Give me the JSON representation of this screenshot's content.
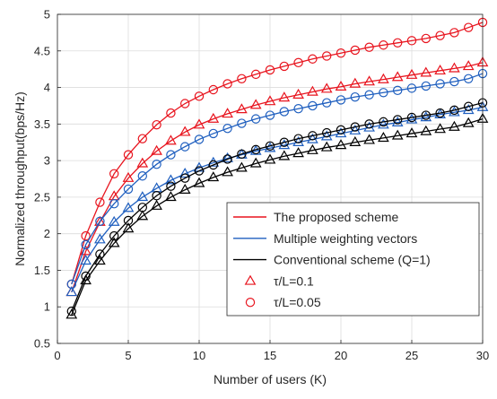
{
  "chart_data": {
    "type": "line",
    "xlabel": "Number of users (K)",
    "ylabel": "Normalized throughput(bps/Hz)",
    "xlim": [
      0,
      30
    ],
    "ylim": [
      0.5,
      5
    ],
    "x_ticks": [
      "0",
      "5",
      "10",
      "15",
      "20",
      "25",
      "30"
    ],
    "y_ticks": [
      "0.5",
      "1",
      "1.5",
      "2",
      "2.5",
      "3",
      "3.5",
      "4",
      "4.5",
      "5"
    ],
    "grid": true,
    "legend_position": "bottom-right",
    "legend": [
      {
        "label": "The proposed scheme",
        "kind": "line",
        "color": "#e8141e"
      },
      {
        "label": "Multiple weighting vectors",
        "kind": "line",
        "color": "#1f5fbf"
      },
      {
        "label": "Conventional scheme (Q=1)",
        "kind": "line",
        "color": "#000000"
      },
      {
        "label": "τ/L=0.1",
        "kind": "marker",
        "marker": "triangle",
        "color": "#e8141e"
      },
      {
        "label": "τ/L=0.05",
        "kind": "marker",
        "marker": "circle",
        "color": "#e8141e"
      }
    ],
    "x": [
      1,
      2,
      3,
      4,
      5,
      6,
      7,
      8,
      9,
      10,
      11,
      12,
      13,
      14,
      15,
      16,
      17,
      18,
      19,
      20,
      21,
      22,
      23,
      24,
      25,
      26,
      27,
      28,
      29,
      30
    ],
    "series": [
      {
        "scheme": "The proposed scheme",
        "tau_over_L": "0.05",
        "color": "#e8141e",
        "marker": "circle",
        "values": [
          1.31,
          1.97,
          2.43,
          2.82,
          3.08,
          3.3,
          3.49,
          3.65,
          3.78,
          3.88,
          3.97,
          4.05,
          4.12,
          4.18,
          4.24,
          4.29,
          4.34,
          4.39,
          4.43,
          4.47,
          4.51,
          4.55,
          4.58,
          4.61,
          4.64,
          4.67,
          4.71,
          4.75,
          4.82,
          4.89
        ]
      },
      {
        "scheme": "The proposed scheme",
        "tau_over_L": "0.1",
        "color": "#e8141e",
        "marker": "triangle",
        "values": [
          1.2,
          1.76,
          2.16,
          2.51,
          2.76,
          2.96,
          3.13,
          3.27,
          3.39,
          3.49,
          3.57,
          3.64,
          3.7,
          3.76,
          3.81,
          3.86,
          3.9,
          3.94,
          3.98,
          4.01,
          4.05,
          4.08,
          4.11,
          4.14,
          4.17,
          4.2,
          4.23,
          4.26,
          4.29,
          4.34
        ]
      },
      {
        "scheme": "Multiple weighting vectors",
        "tau_over_L": "0.05",
        "color": "#1f5fbf",
        "marker": "circle",
        "values": [
          1.31,
          1.85,
          2.17,
          2.41,
          2.61,
          2.79,
          2.95,
          3.08,
          3.19,
          3.29,
          3.37,
          3.44,
          3.51,
          3.57,
          3.62,
          3.67,
          3.71,
          3.75,
          3.79,
          3.83,
          3.87,
          3.9,
          3.93,
          3.96,
          3.99,
          4.02,
          4.05,
          4.08,
          4.12,
          4.19
        ]
      },
      {
        "scheme": "Multiple weighting vectors",
        "tau_over_L": "0.1",
        "color": "#1f5fbf",
        "marker": "triangle",
        "values": [
          1.2,
          1.63,
          1.92,
          2.16,
          2.35,
          2.5,
          2.62,
          2.73,
          2.82,
          2.9,
          2.97,
          3.03,
          3.08,
          3.13,
          3.17,
          3.21,
          3.25,
          3.29,
          3.33,
          3.37,
          3.41,
          3.45,
          3.49,
          3.52,
          3.56,
          3.59,
          3.63,
          3.66,
          3.69,
          3.73
        ]
      },
      {
        "scheme": "Conventional scheme (Q=1)",
        "tau_over_L": "0.05",
        "color": "#000000",
        "marker": "circle",
        "values": [
          0.94,
          1.42,
          1.72,
          1.97,
          2.18,
          2.36,
          2.52,
          2.65,
          2.76,
          2.86,
          2.94,
          3.02,
          3.09,
          3.15,
          3.2,
          3.25,
          3.3,
          3.34,
          3.38,
          3.42,
          3.46,
          3.5,
          3.53,
          3.56,
          3.59,
          3.62,
          3.65,
          3.69,
          3.74,
          3.79
        ]
      },
      {
        "scheme": "Conventional scheme (Q=1)",
        "tau_over_L": "0.1",
        "color": "#000000",
        "marker": "triangle",
        "values": [
          0.89,
          1.36,
          1.63,
          1.87,
          2.07,
          2.24,
          2.38,
          2.5,
          2.6,
          2.69,
          2.77,
          2.84,
          2.9,
          2.96,
          3.01,
          3.06,
          3.1,
          3.14,
          3.18,
          3.21,
          3.25,
          3.28,
          3.31,
          3.34,
          3.37,
          3.4,
          3.43,
          3.46,
          3.51,
          3.57
        ]
      }
    ]
  }
}
